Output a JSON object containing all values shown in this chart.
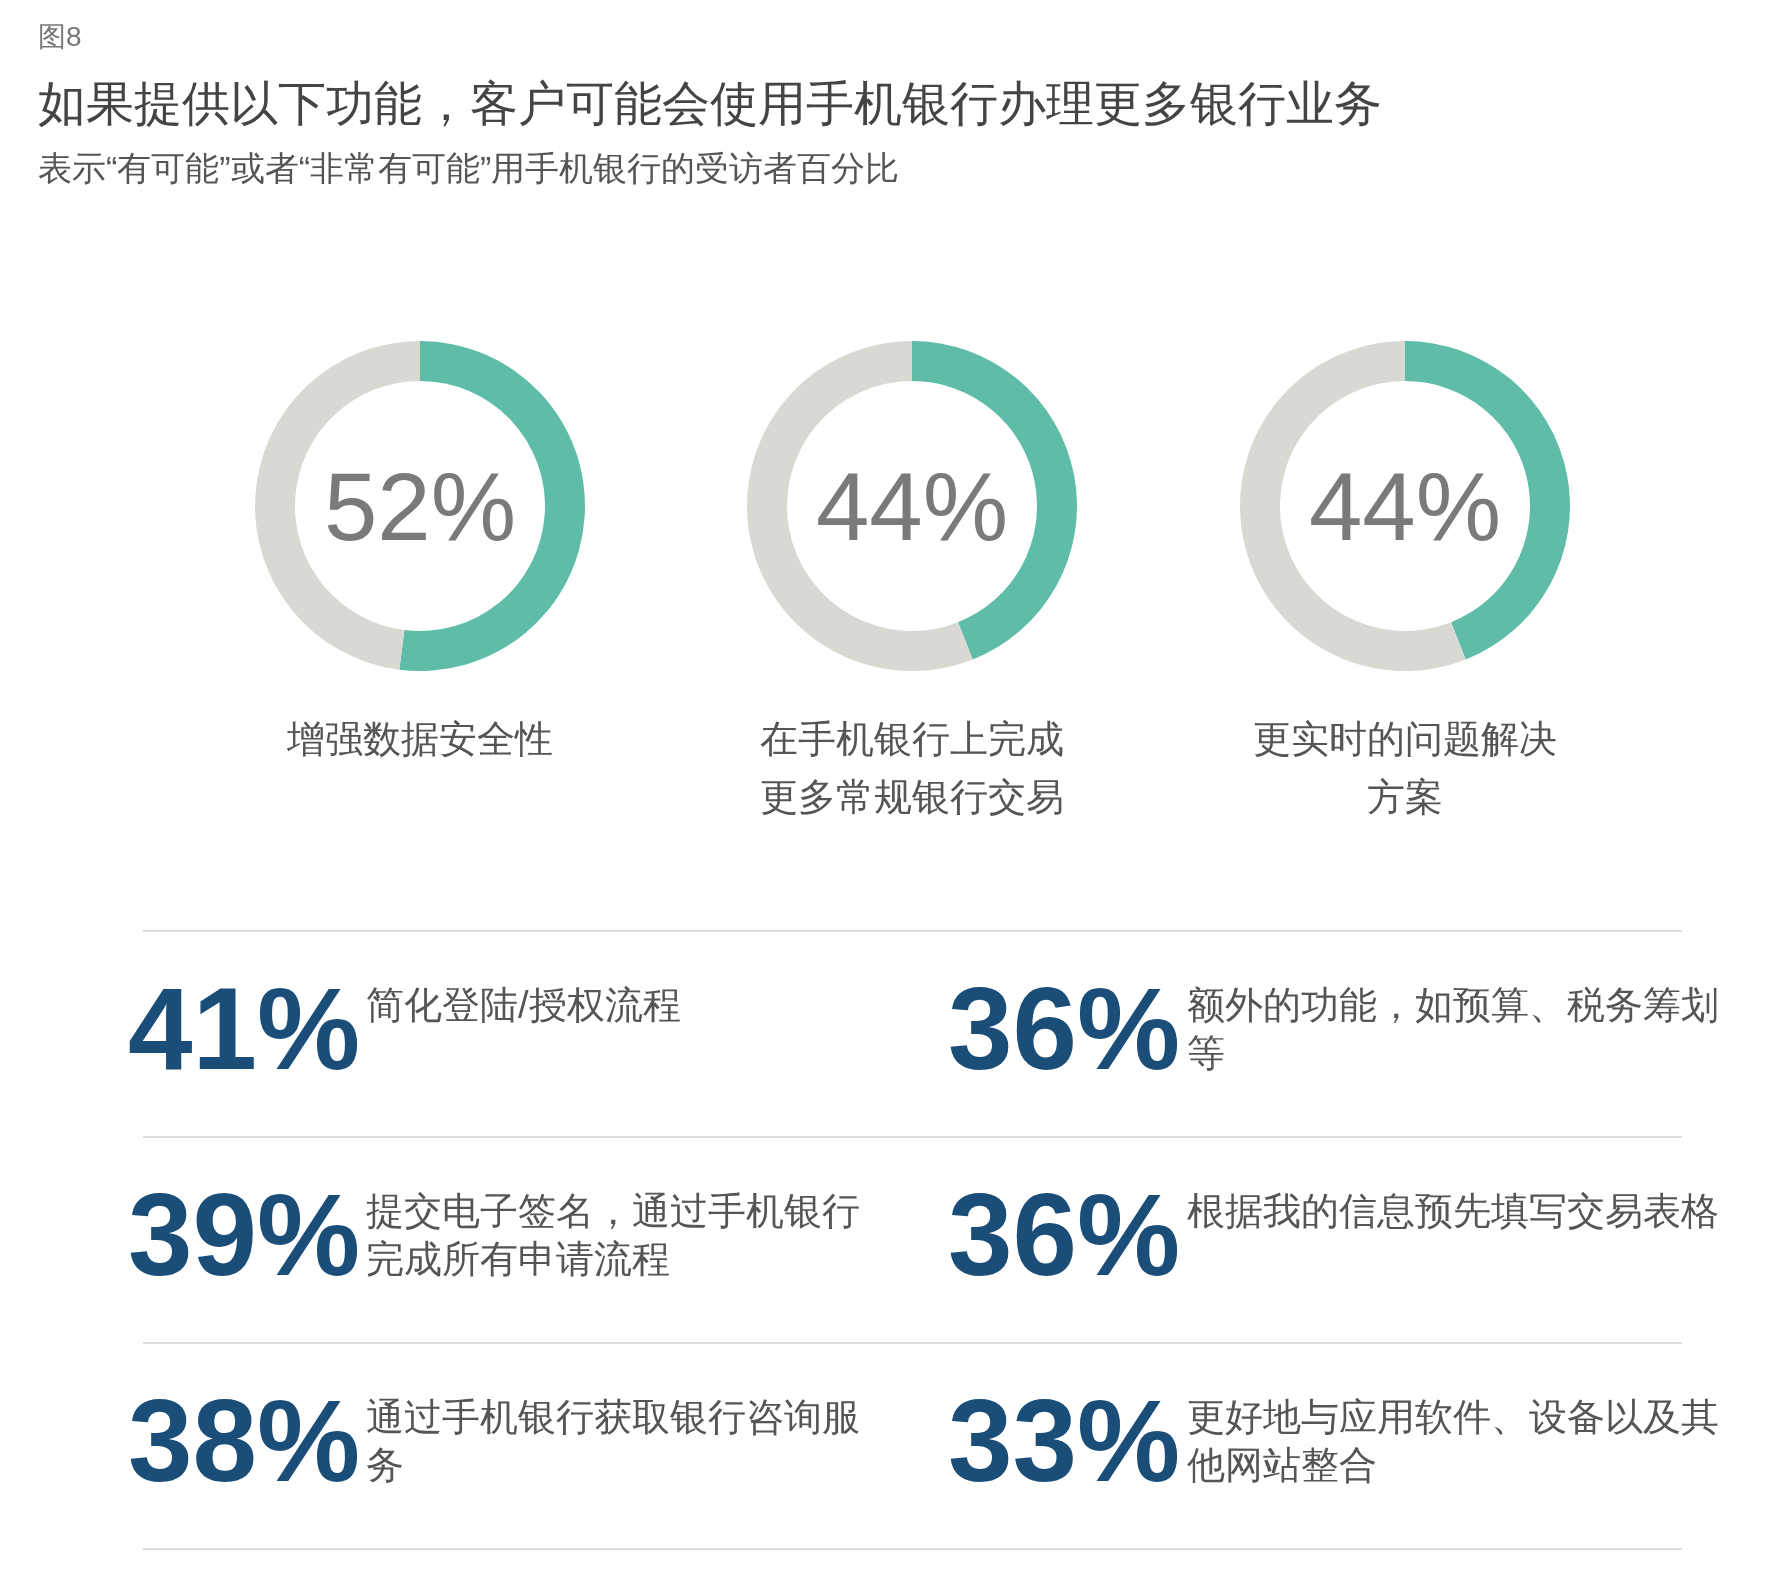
{
  "chart_data": [
    {
      "type": "donut",
      "title": "如果提供以下功能，客户可能会使用手机银行办理更多银行业务",
      "subtitle": "表示“有可能”或者“非常有可能”用手机银行的受访者百分比",
      "annotations": [
        "图8"
      ],
      "xlabel": "增强数据安全性",
      "categories": [
        null,
        null
      ],
      "values": [
        52,
        48
      ],
      "colors": [
        "#5fbda7",
        "#d9d9d4"
      ],
      "value_labels": [
        "52%",
        null
      ]
    },
    {
      "type": "donut",
      "xlabel": "在手机银行上完成更多常规银行交易",
      "categories": [
        null,
        null
      ],
      "values": [
        44,
        56
      ],
      "colors": [
        "#5fbda7",
        "#d9d9d4"
      ],
      "value_labels": [
        "44%",
        null
      ]
    },
    {
      "type": "donut",
      "xlabel": "更实时的问题解决方案",
      "categories": [
        null,
        null
      ],
      "values": [
        44,
        56
      ],
      "colors": [
        "#5fbda7",
        "#d9d9d4"
      ],
      "value_labels": [
        "44%",
        null
      ]
    },
    {
      "type": "other",
      "categories": [
        "简化登陆/授权流程",
        "额外的功能，如预算、税务筹划等",
        "提交电子签名，通过手机银行完成所有申请流程",
        "根据我的信息预先填写交易表格",
        "通过手机银行获取银行咨询服务",
        "更好地与应用软件、设备以及其他网站整合"
      ],
      "values": [
        41,
        36,
        39,
        36,
        38,
        33
      ],
      "value_labels": [
        "41%",
        "36%",
        "39%",
        "36%",
        "38%",
        "33%"
      ],
      "color": "#1a4e78"
    }
  ]
}
